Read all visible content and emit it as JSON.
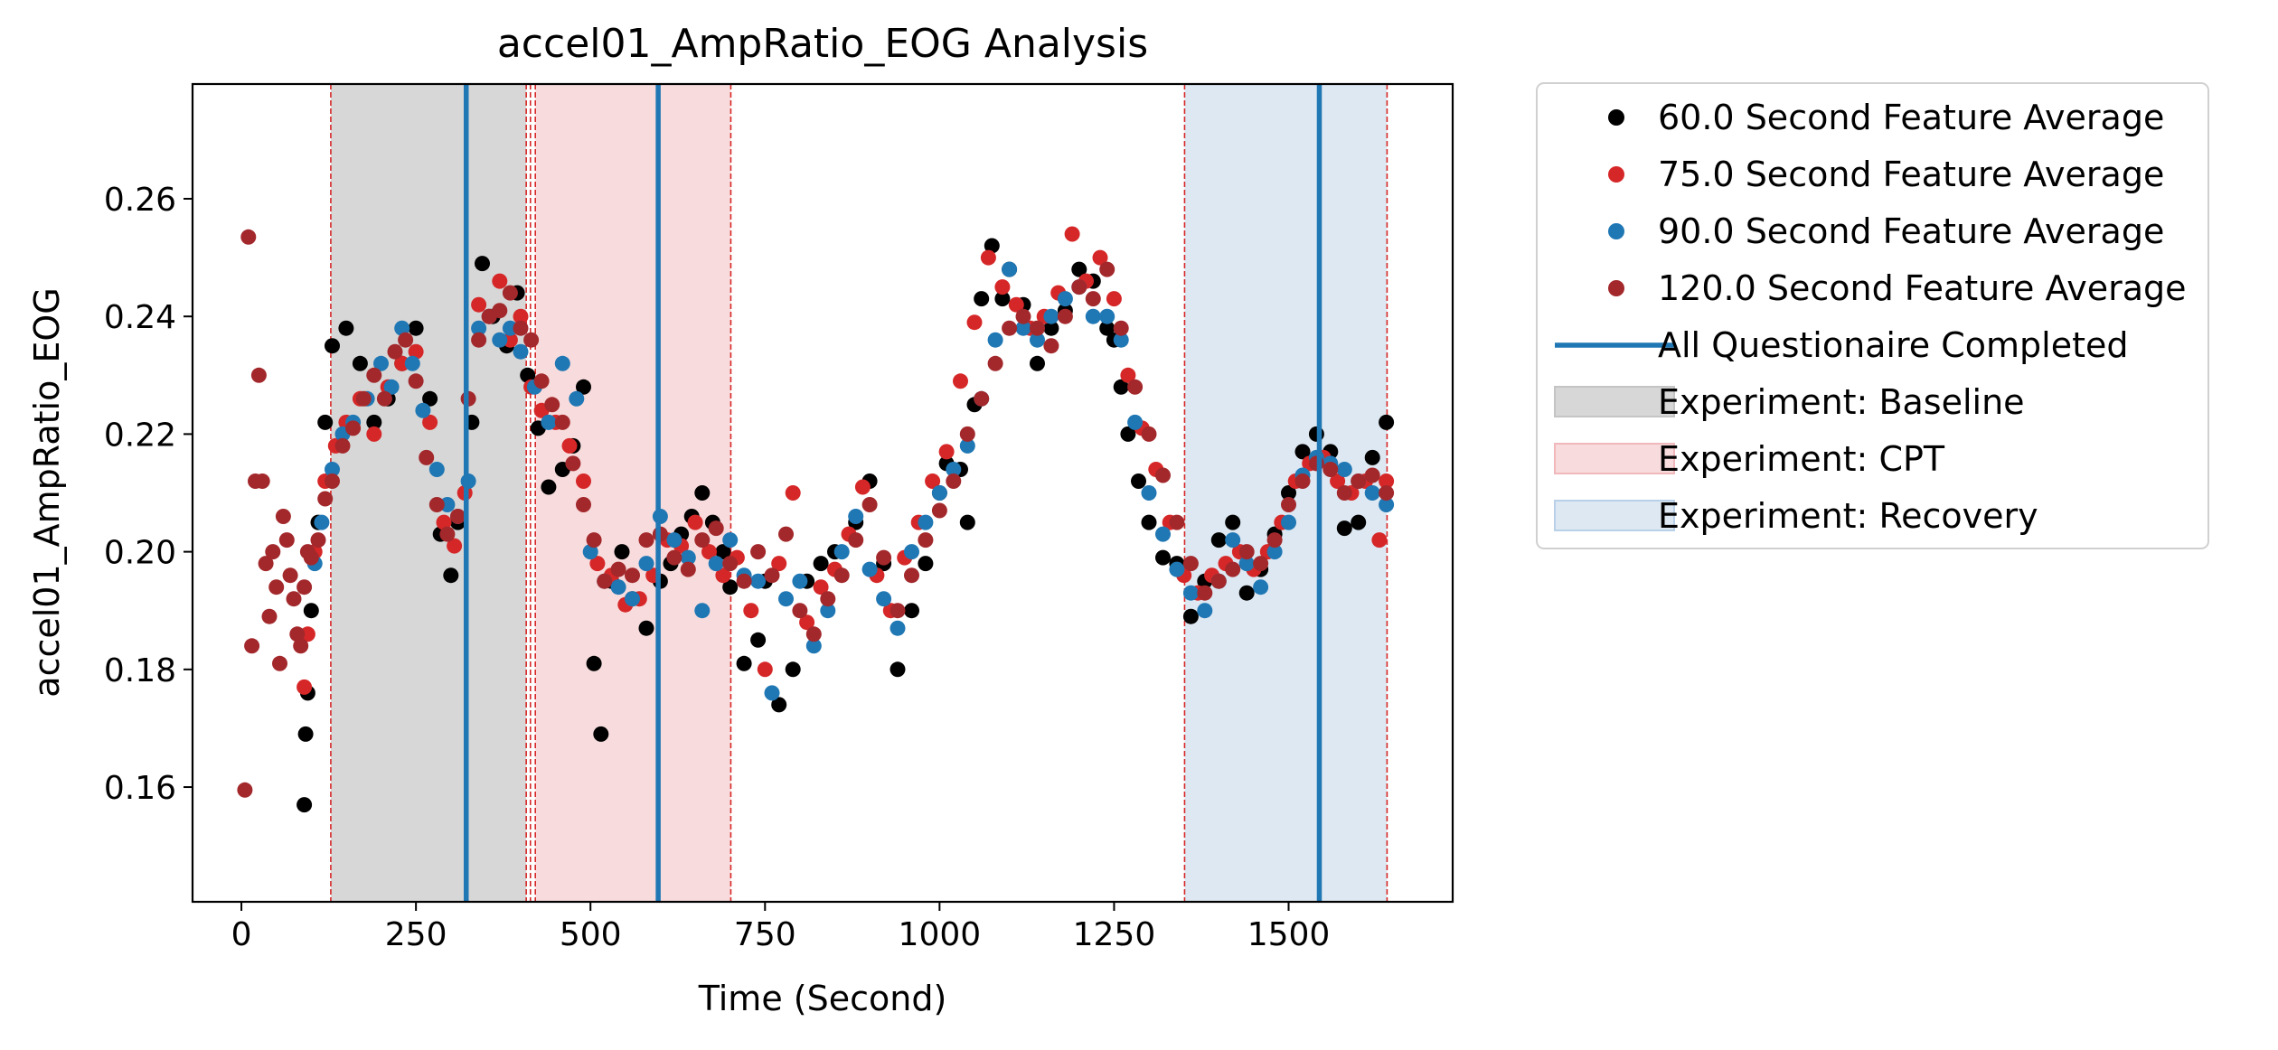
{
  "chart_data": {
    "type": "scatter",
    "title": "accel01_AmpRatio_EOG Analysis",
    "xlabel": "Time (Second)",
    "ylabel": "accel01_AmpRatio_EOG",
    "xlim": [
      -70,
      1735
    ],
    "ylim": [
      0.1405,
      0.2795
    ],
    "x_ticks": [
      0,
      250,
      500,
      750,
      1000,
      1250,
      1500
    ],
    "y_ticks": [
      0.16,
      0.18,
      0.2,
      0.22,
      0.24,
      0.26
    ],
    "x_tick_labels": [
      "0",
      "250",
      "500",
      "750",
      "1000",
      "1250",
      "1500"
    ],
    "y_tick_labels": [
      "0.16",
      "0.18",
      "0.20",
      "0.22",
      "0.24",
      "0.26"
    ],
    "grid": false,
    "legend_position": "outside-right",
    "phases": [
      {
        "name": "Experiment: Baseline",
        "start": 128,
        "end": 408,
        "color": "#d7d7d7",
        "edge": "#c4c4c4"
      },
      {
        "name": "Experiment: CPT",
        "start": 421,
        "end": 701,
        "color": "#f8dcdd",
        "edge": "#f0b8bb"
      },
      {
        "name": "Experiment: Recovery",
        "start": 1351,
        "end": 1641,
        "color": "#dde8f2",
        "edge": "#b9d1e8"
      }
    ],
    "boundary_lines": [
      128,
      408,
      414,
      421,
      701,
      1351,
      1641
    ],
    "boundary_color": "#d62728",
    "questionnaire": {
      "name": "All Questionaire Completed",
      "x": [
        322,
        597,
        1544
      ],
      "color": "#1f77b4"
    },
    "series": [
      {
        "name": "60.0 Second Feature Average",
        "color": "#000000",
        "x": [
          90,
          92,
          95,
          100,
          110,
          120,
          130,
          150,
          170,
          190,
          210,
          230,
          250,
          270,
          285,
          300,
          310,
          330,
          345,
          360,
          380,
          395,
          410,
          425,
          440,
          460,
          475,
          490,
          505,
          515,
          530,
          545,
          560,
          580,
          600,
          615,
          630,
          645,
          660,
          675,
          690,
          700,
          720,
          740,
          750,
          770,
          790,
          810,
          830,
          850,
          880,
          900,
          920,
          940,
          960,
          980,
          1000,
          1010,
          1030,
          1040,
          1050,
          1060,
          1075,
          1090,
          1100,
          1120,
          1140,
          1160,
          1180,
          1200,
          1220,
          1240,
          1250,
          1260,
          1270,
          1285,
          1300,
          1320,
          1340,
          1360,
          1380,
          1400,
          1420,
          1440,
          1460,
          1480,
          1500,
          1520,
          1540,
          1560,
          1580,
          1600,
          1620,
          1640
        ],
        "y": [
          0.157,
          0.169,
          0.176,
          0.19,
          0.205,
          0.222,
          0.235,
          0.238,
          0.232,
          0.222,
          0.226,
          0.232,
          0.238,
          0.226,
          0.203,
          0.196,
          0.205,
          0.222,
          0.249,
          0.24,
          0.235,
          0.244,
          0.23,
          0.221,
          0.211,
          0.214,
          0.218,
          0.228,
          0.181,
          0.169,
          0.195,
          0.2,
          0.192,
          0.187,
          0.195,
          0.198,
          0.203,
          0.206,
          0.21,
          0.205,
          0.2,
          0.194,
          0.181,
          0.185,
          0.195,
          0.174,
          0.18,
          0.195,
          0.198,
          0.2,
          0.205,
          0.212,
          0.198,
          0.18,
          0.19,
          0.198,
          0.21,
          0.215,
          0.214,
          0.205,
          0.225,
          0.243,
          0.252,
          0.243,
          0.248,
          0.242,
          0.232,
          0.238,
          0.241,
          0.248,
          0.246,
          0.238,
          0.236,
          0.228,
          0.22,
          0.212,
          0.205,
          0.199,
          0.198,
          0.189,
          0.195,
          0.202,
          0.205,
          0.193,
          0.197,
          0.203,
          0.21,
          0.217,
          0.22,
          0.217,
          0.204,
          0.205,
          0.216,
          0.222
        ]
      },
      {
        "name": "75.0 Second Feature Average",
        "color": "#d62728",
        "x": [
          90,
          95,
          105,
          120,
          135,
          150,
          170,
          190,
          210,
          230,
          250,
          270,
          290,
          305,
          320,
          340,
          355,
          370,
          385,
          400,
          415,
          430,
          450,
          470,
          490,
          510,
          530,
          550,
          570,
          590,
          610,
          630,
          650,
          670,
          690,
          710,
          730,
          750,
          770,
          790,
          810,
          830,
          850,
          870,
          890,
          910,
          930,
          950,
          970,
          990,
          1010,
          1030,
          1050,
          1070,
          1090,
          1110,
          1130,
          1150,
          1170,
          1190,
          1210,
          1230,
          1250,
          1270,
          1290,
          1310,
          1330,
          1350,
          1370,
          1390,
          1410,
          1430,
          1450,
          1470,
          1490,
          1510,
          1530,
          1550,
          1570,
          1590,
          1610,
          1630,
          1640
        ],
        "y": [
          0.177,
          0.186,
          0.2,
          0.212,
          0.218,
          0.222,
          0.226,
          0.22,
          0.228,
          0.232,
          0.234,
          0.222,
          0.205,
          0.201,
          0.21,
          0.242,
          0.24,
          0.246,
          0.236,
          0.24,
          0.228,
          0.224,
          0.222,
          0.218,
          0.212,
          0.198,
          0.196,
          0.191,
          0.192,
          0.196,
          0.202,
          0.201,
          0.205,
          0.2,
          0.196,
          0.199,
          0.19,
          0.18,
          0.198,
          0.21,
          0.188,
          0.194,
          0.197,
          0.203,
          0.211,
          0.196,
          0.19,
          0.199,
          0.205,
          0.212,
          0.217,
          0.229,
          0.239,
          0.25,
          0.245,
          0.242,
          0.238,
          0.24,
          0.244,
          0.254,
          0.246,
          0.25,
          0.243,
          0.23,
          0.221,
          0.214,
          0.205,
          0.196,
          0.193,
          0.196,
          0.198,
          0.2,
          0.197,
          0.2,
          0.205,
          0.212,
          0.215,
          0.216,
          0.212,
          0.21,
          0.212,
          0.202,
          0.212
        ]
      },
      {
        "name": "90.0 Second Feature Average",
        "color": "#1f77b4",
        "x": [
          105,
          115,
          130,
          145,
          160,
          180,
          200,
          215,
          230,
          245,
          260,
          280,
          295,
          310,
          325,
          340,
          355,
          370,
          385,
          400,
          420,
          440,
          460,
          480,
          500,
          520,
          540,
          560,
          580,
          600,
          620,
          640,
          660,
          680,
          700,
          720,
          740,
          760,
          780,
          800,
          820,
          840,
          860,
          880,
          900,
          920,
          940,
          960,
          980,
          1000,
          1020,
          1040,
          1060,
          1080,
          1100,
          1120,
          1140,
          1160,
          1180,
          1200,
          1220,
          1240,
          1260,
          1280,
          1300,
          1320,
          1340,
          1360,
          1380,
          1400,
          1420,
          1440,
          1460,
          1480,
          1500,
          1520,
          1540,
          1560,
          1580,
          1600,
          1620,
          1640
        ],
        "y": [
          0.198,
          0.205,
          0.214,
          0.22,
          0.222,
          0.226,
          0.232,
          0.228,
          0.238,
          0.232,
          0.224,
          0.214,
          0.208,
          0.206,
          0.212,
          0.238,
          0.24,
          0.236,
          0.238,
          0.234,
          0.228,
          0.222,
          0.232,
          0.226,
          0.2,
          0.195,
          0.194,
          0.192,
          0.198,
          0.206,
          0.202,
          0.199,
          0.19,
          0.198,
          0.202,
          0.196,
          0.195,
          0.176,
          0.192,
          0.195,
          0.184,
          0.19,
          0.2,
          0.206,
          0.197,
          0.192,
          0.187,
          0.2,
          0.205,
          0.21,
          0.214,
          0.218,
          0.226,
          0.236,
          0.248,
          0.238,
          0.236,
          0.24,
          0.243,
          0.245,
          0.24,
          0.24,
          0.236,
          0.222,
          0.21,
          0.203,
          0.197,
          0.193,
          0.19,
          0.195,
          0.202,
          0.198,
          0.194,
          0.2,
          0.205,
          0.213,
          0.216,
          0.215,
          0.214,
          0.212,
          0.21,
          0.208
        ]
      },
      {
        "name": "120.0 Second Feature Average",
        "color": "#a3282b",
        "x": [
          5,
          10,
          15,
          20,
          25,
          30,
          35,
          40,
          45,
          50,
          55,
          60,
          65,
          70,
          75,
          80,
          85,
          90,
          95,
          100,
          110,
          120,
          130,
          145,
          160,
          175,
          190,
          205,
          220,
          235,
          250,
          265,
          280,
          295,
          310,
          325,
          340,
          355,
          370,
          385,
          400,
          415,
          430,
          445,
          460,
          475,
          490,
          505,
          520,
          540,
          560,
          580,
          600,
          620,
          640,
          660,
          680,
          700,
          720,
          740,
          760,
          780,
          800,
          820,
          840,
          860,
          880,
          900,
          920,
          940,
          960,
          980,
          1000,
          1020,
          1040,
          1060,
          1080,
          1100,
          1120,
          1140,
          1160,
          1180,
          1200,
          1220,
          1240,
          1260,
          1280,
          1300,
          1320,
          1340,
          1360,
          1380,
          1400,
          1420,
          1440,
          1460,
          1480,
          1500,
          1520,
          1540,
          1560,
          1580,
          1600,
          1620,
          1640
        ],
        "y": [
          0.1595,
          0.2535,
          0.184,
          0.212,
          0.23,
          0.212,
          0.198,
          0.189,
          0.2,
          0.194,
          0.181,
          0.206,
          0.202,
          0.196,
          0.192,
          0.186,
          0.184,
          0.194,
          0.2,
          0.199,
          0.202,
          0.209,
          0.212,
          0.218,
          0.221,
          0.226,
          0.23,
          0.226,
          0.234,
          0.236,
          0.229,
          0.216,
          0.208,
          0.203,
          0.206,
          0.226,
          0.236,
          0.24,
          0.241,
          0.244,
          0.238,
          0.236,
          0.229,
          0.225,
          0.222,
          0.215,
          0.208,
          0.202,
          0.195,
          0.197,
          0.196,
          0.202,
          0.203,
          0.199,
          0.197,
          0.202,
          0.204,
          0.198,
          0.195,
          0.2,
          0.196,
          0.203,
          0.19,
          0.186,
          0.192,
          0.196,
          0.202,
          0.208,
          0.199,
          0.19,
          0.196,
          0.202,
          0.207,
          0.212,
          0.22,
          0.226,
          0.232,
          0.238,
          0.24,
          0.238,
          0.235,
          0.24,
          0.245,
          0.243,
          0.248,
          0.238,
          0.228,
          0.22,
          0.213,
          0.205,
          0.198,
          0.193,
          0.195,
          0.197,
          0.2,
          0.198,
          0.202,
          0.208,
          0.212,
          0.215,
          0.214,
          0.21,
          0.212,
          0.213,
          0.21
        ]
      }
    ]
  }
}
